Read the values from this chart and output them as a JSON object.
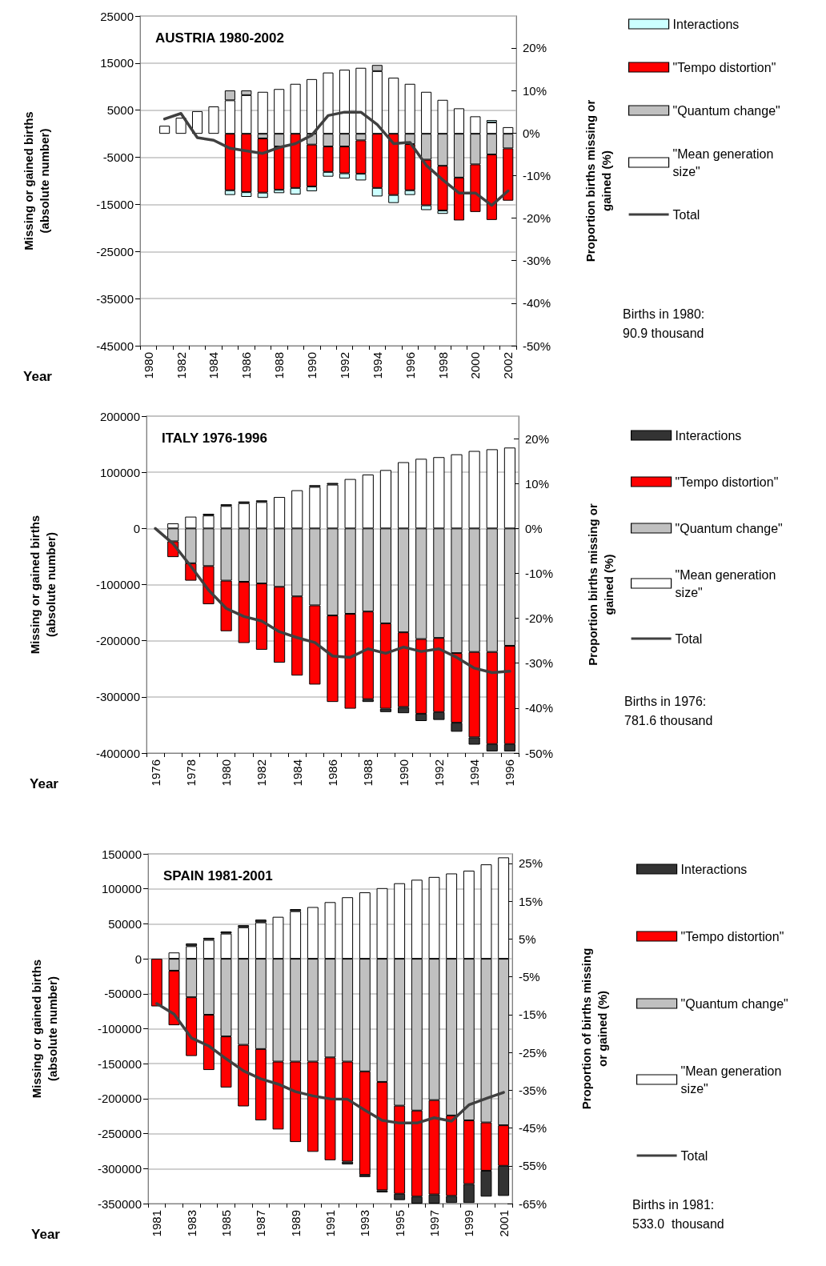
{
  "chart_data": [
    {
      "type": "bar",
      "title": "AUSTRIA 1980-2002",
      "xlabel": "Year",
      "ylabel": "Missing or gained births (absolute number)",
      "y2label": "Proportion births missing or gained (%)",
      "stacked": true,
      "grid": "y",
      "legend": "right",
      "annotations": [
        "Births in 1980: 90.9 thousand"
      ],
      "categories": [
        "1980",
        null,
        "1982",
        null,
        "1984",
        null,
        "1986",
        null,
        "1988",
        null,
        "1990",
        null,
        "1992",
        null,
        "1994",
        null,
        "1996",
        null,
        "1998",
        null,
        "2000",
        null,
        "2002"
      ],
      "ylim": [
        -45000,
        25000
      ],
      "yticks": [
        -45000,
        -35000,
        -25000,
        -15000,
        -5000,
        5000,
        15000,
        25000
      ],
      "y2lim": [
        -50,
        27.5
      ],
      "y2ticks": [
        {
          "value": -50,
          "label": "-50%"
        },
        {
          "value": -40,
          "label": "-40%"
        },
        {
          "value": -30,
          "label": "-30%"
        },
        {
          "value": -20,
          "label": "-20%"
        },
        {
          "value": -10,
          "label": "-10%"
        },
        {
          "value": 0,
          "label": "0%"
        },
        {
          "value": 10,
          "label": "10%"
        },
        {
          "value": 20,
          "label": "20%"
        }
      ],
      "series": [
        {
          "name": "\"Mean generation size\"",
          "color": "#ffffff",
          "values": [
            null,
            1700,
            3400,
            4800,
            5800,
            7100,
            8200,
            8900,
            9500,
            10600,
            11600,
            13000,
            13600,
            14000,
            13300,
            11900,
            10600,
            8900,
            7200,
            5400,
            3700,
            2400,
            1400
          ]
        },
        {
          "name": "\"Quantum change\"",
          "color": "#c0c0c0",
          "values": [
            null,
            null,
            null,
            null,
            null,
            2100,
            1000,
            -1000,
            -2700,
            null,
            -2300,
            -2700,
            -2700,
            -1400,
            1300,
            null,
            -2200,
            -5500,
            -6800,
            -9300,
            -6500,
            -4400,
            -3100
          ]
        },
        {
          "name": "\"Tempo distortion\"",
          "color": "#ff0000",
          "values": [
            null,
            null,
            null,
            null,
            null,
            -12000,
            -12400,
            -11500,
            -9200,
            -11500,
            -8900,
            -5400,
            -5700,
            -7100,
            -11500,
            -13000,
            -9800,
            -9700,
            -9500,
            -9100,
            -10100,
            -13900,
            -11100
          ]
        },
        {
          "name": "Interactions",
          "color": "#ccffff",
          "values": [
            null,
            null,
            null,
            null,
            null,
            -1000,
            -1000,
            -1100,
            -700,
            -1400,
            -1000,
            -1000,
            -1100,
            -1400,
            -1800,
            -1700,
            -1000,
            -1000,
            -700,
            null,
            null,
            500,
            null
          ]
        },
        {
          "name": "Total",
          "type": "line",
          "axis": "y2",
          "color": "#404040",
          "values": [
            null,
            3.3,
            4.6,
            -1.1,
            -1.7,
            -3.6,
            -4.2,
            -4.8,
            -3.4,
            -2.5,
            -0.5,
            4.1,
            4.9,
            4.9,
            2.0,
            -2.5,
            -2.2,
            -7.6,
            -11,
            -14.1,
            -14.1,
            -17,
            -13.6
          ]
        }
      ]
    },
    {
      "type": "bar",
      "title": "ITALY 1976-1996",
      "xlabel": "Year",
      "ylabel": "Missing or gained births (absolute number)",
      "y2label": "Proportion births missing or gained (%)",
      "stacked": true,
      "grid": "y",
      "legend": "right",
      "annotations": [
        "Births in 1976: 781.6 thousand"
      ],
      "categories": [
        "1976",
        null,
        "1978",
        null,
        "1980",
        null,
        "1982",
        null,
        "1984",
        null,
        "1986",
        null,
        "1988",
        null,
        "1990",
        null,
        "1992",
        null,
        "1994",
        null,
        "1996"
      ],
      "ylim": [
        -400000,
        200000
      ],
      "yticks": [
        -400000,
        -300000,
        -200000,
        -100000,
        0,
        100000,
        200000
      ],
      "y2lim": [
        -50,
        25
      ],
      "y2ticks": [
        {
          "value": -50,
          "label": "-50%"
        },
        {
          "value": -40,
          "label": "-40%"
        },
        {
          "value": -30,
          "label": "-30%"
        },
        {
          "value": -20,
          "label": "-20%"
        },
        {
          "value": -10,
          "label": "-10%"
        },
        {
          "value": 0,
          "label": "0%"
        },
        {
          "value": 10,
          "label": "10%"
        },
        {
          "value": 20,
          "label": "20%"
        }
      ],
      "series": [
        {
          "name": "\"Mean generation size\"",
          "color": "#ffffff",
          "values": [
            null,
            9000,
            21000,
            23000,
            40000,
            45000,
            47000,
            56000,
            68000,
            74000,
            78000,
            88000,
            96000,
            104000,
            118000,
            124000,
            127000,
            132000,
            138000,
            141000,
            144000
          ]
        },
        {
          "name": "\"Quantum change\"",
          "color": "#c0c0c0",
          "values": [
            null,
            -23000,
            -62000,
            -67000,
            -93000,
            -95000,
            -98000,
            -104000,
            -121000,
            -137000,
            -155000,
            -152000,
            -148000,
            -169000,
            -185000,
            -197000,
            -195000,
            -222000,
            -220000,
            -220000,
            -209000
          ]
        },
        {
          "name": "\"Tempo distortion\"",
          "color": "#ff0000",
          "values": [
            null,
            -28000,
            -31000,
            -68000,
            -90000,
            -109000,
            -118000,
            -135000,
            -141000,
            -141000,
            -154000,
            -169000,
            -156000,
            -152000,
            -133000,
            -133000,
            -132000,
            -124000,
            -152000,
            -164000,
            -175000
          ]
        },
        {
          "name": "Interactions",
          "color": "#333333",
          "values": [
            null,
            null,
            null,
            3000,
            3000,
            3000,
            3000,
            null,
            null,
            3000,
            3000,
            null,
            -5000,
            -6000,
            -11000,
            -13000,
            -14000,
            -16000,
            -13000,
            -13000,
            -13000
          ]
        },
        {
          "name": "Total",
          "type": "line",
          "axis": "y2",
          "color": "#404040",
          "values": [
            0,
            -3.4,
            -8.4,
            -13.7,
            -17.8,
            -19.6,
            -20.6,
            -23,
            -24.3,
            -25.4,
            -28.4,
            -28.7,
            -26.8,
            -27.8,
            -26.4,
            -27.4,
            -26.8,
            -28.7,
            -31.1,
            -32.1,
            -31.8
          ]
        }
      ]
    },
    {
      "type": "bar",
      "title": "SPAIN 1981-2001",
      "xlabel": "Year",
      "ylabel": "Missing or gained births (absolute number)",
      "y2label": "Proportion of births missing or gained (%)",
      "stacked": true,
      "grid": "y",
      "legend": "right",
      "annotations": [
        "Births in 1981: 533.0  thousand"
      ],
      "categories": [
        "1981",
        null,
        "1983",
        null,
        "1985",
        null,
        "1987",
        null,
        "1989",
        null,
        "1991",
        null,
        "1993",
        null,
        "1995",
        null,
        "1997",
        null,
        "1999",
        null,
        "2001"
      ],
      "ylim": [
        -350000,
        150000
      ],
      "yticks": [
        -350000,
        -300000,
        -250000,
        -200000,
        -150000,
        -100000,
        -50000,
        0,
        50000,
        100000,
        150000
      ],
      "y2lim": [
        -65,
        27.5
      ],
      "y2ticks": [
        {
          "value": -65,
          "label": "-65%"
        },
        {
          "value": -55,
          "label": "-55%"
        },
        {
          "value": -45,
          "label": "-45%"
        },
        {
          "value": -35,
          "label": "-35%"
        },
        {
          "value": -25,
          "label": "-25%"
        },
        {
          "value": -15,
          "label": "-15%"
        },
        {
          "value": -5,
          "label": "-5%"
        },
        {
          "value": 5,
          "label": "5%"
        },
        {
          "value": 15,
          "label": "15%"
        },
        {
          "value": 25,
          "label": "25%"
        }
      ],
      "series": [
        {
          "name": "\"Mean generation size\"",
          "color": "#ffffff",
          "values": [
            null,
            9000,
            18000,
            27000,
            36000,
            45000,
            52000,
            60000,
            68000,
            74000,
            81000,
            88000,
            95000,
            101000,
            108000,
            113000,
            117000,
            122000,
            126000,
            135000,
            145000
          ]
        },
        {
          "name": "\"Quantum change\"",
          "color": "#c0c0c0",
          "values": [
            null,
            -17000,
            -55000,
            -80000,
            -111000,
            -123000,
            -129000,
            -147000,
            -147000,
            -147000,
            -141000,
            -147000,
            -161000,
            -176000,
            -210000,
            -217000,
            -202000,
            -224000,
            -231000,
            -234000,
            -238000
          ]
        },
        {
          "name": "\"Tempo distortion\"",
          "color": "#ff0000",
          "values": [
            -68000,
            -78000,
            -84000,
            -79000,
            -73000,
            -88000,
            -102000,
            -97000,
            -115000,
            -129000,
            -147000,
            -143000,
            -148000,
            -155000,
            -126000,
            -123000,
            -135000,
            -115000,
            -91000,
            -69000,
            -58000
          ]
        },
        {
          "name": "Interactions",
          "color": "#333333",
          "values": [
            null,
            null,
            4000,
            3000,
            3000,
            3000,
            4000,
            null,
            3000,
            null,
            null,
            -4000,
            -3000,
            -3000,
            -9000,
            -10000,
            -13000,
            -10000,
            -27000,
            -37000,
            -43000
          ]
        },
        {
          "name": "Total",
          "type": "line",
          "axis": "y2",
          "color": "#404040",
          "values": [
            -12.1,
            -14.9,
            -21.2,
            -23.3,
            -26.7,
            -29.9,
            -32,
            -33.4,
            -35.4,
            -36.5,
            -37.3,
            -37.4,
            -40.3,
            -43,
            -43.7,
            -43.7,
            -42.3,
            -43.2,
            -38.9,
            -37.2,
            -35.6
          ]
        }
      ]
    }
  ]
}
